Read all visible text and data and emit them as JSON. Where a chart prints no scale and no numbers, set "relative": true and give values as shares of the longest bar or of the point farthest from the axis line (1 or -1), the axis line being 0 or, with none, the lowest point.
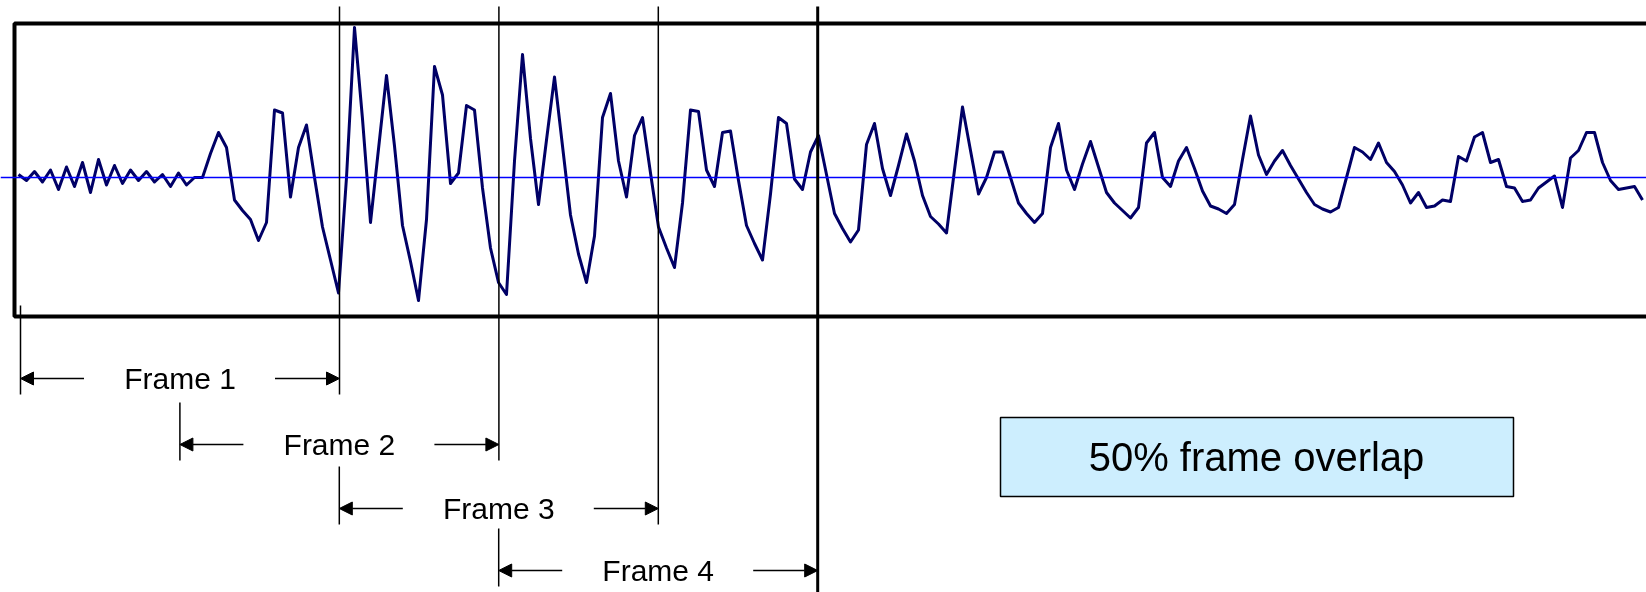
{
  "chart_data": {
    "type": "line",
    "relative": true,
    "categories": [
      null,
      null,
      null,
      null,
      null,
      null,
      null,
      null,
      null,
      null,
      null,
      null,
      null,
      null,
      null,
      null,
      null,
      null,
      null,
      null,
      null,
      null,
      null,
      null,
      null,
      null,
      null,
      null,
      null,
      null,
      null,
      null,
      null,
      null,
      null,
      null,
      null,
      null,
      null,
      null,
      null,
      null,
      null,
      null,
      null,
      null,
      null,
      null,
      null,
      null,
      null,
      null,
      null,
      null,
      null,
      null,
      null,
      null,
      null,
      null,
      null,
      null,
      null,
      null,
      null,
      null,
      null,
      null,
      null,
      null,
      null,
      null,
      null,
      null,
      null,
      null,
      null,
      null,
      null,
      null,
      null,
      null,
      null,
      null,
      null,
      null,
      null,
      null,
      null,
      null,
      null,
      null,
      null,
      null,
      null,
      null,
      null,
      null,
      null,
      null,
      null,
      null,
      null,
      null,
      null,
      null,
      null,
      null,
      null,
      null,
      null,
      null,
      null,
      null,
      null,
      null,
      null,
      null,
      null,
      null,
      null,
      null,
      null,
      null,
      null,
      null,
      null,
      null,
      null,
      null,
      null,
      null,
      null,
      null,
      null,
      null,
      null,
      null,
      null,
      null,
      null,
      null,
      null,
      null,
      null,
      null,
      null,
      null,
      null,
      null,
      null,
      null,
      null,
      null,
      null,
      null,
      null,
      null,
      null,
      null,
      null,
      null,
      null,
      null,
      null,
      null,
      null,
      null,
      null,
      null,
      null,
      null,
      null,
      null,
      null,
      null,
      null,
      null,
      null,
      null,
      null,
      null,
      null,
      null,
      null,
      null,
      null,
      null,
      null,
      null,
      null,
      null,
      null,
      null,
      null,
      null,
      null,
      null,
      null,
      null,
      null,
      null,
      null,
      null
    ],
    "series": [
      {
        "color": "#000066",
        "values": [
          0.02,
          -0.02,
          0.04,
          -0.03,
          0.05,
          -0.08,
          0.07,
          -0.06,
          0.1,
          -0.1,
          0.12,
          -0.05,
          0.08,
          -0.04,
          0.05,
          -0.02,
          0.04,
          -0.03,
          0.02,
          -0.06,
          0.03,
          -0.05,
          0.0,
          0.0,
          0.16,
          0.3,
          0.2,
          -0.15,
          -0.22,
          -0.28,
          -0.42,
          -0.3,
          0.45,
          0.43,
          -0.13,
          0.2,
          0.35,
          0.0,
          -0.33,
          -0.55,
          -0.77,
          0.0,
          1.0,
          0.39,
          -0.3,
          0.19,
          0.68,
          0.21,
          -0.32,
          -0.56,
          -0.82,
          -0.28,
          0.74,
          0.55,
          -0.04,
          0.03,
          0.48,
          0.45,
          -0.07,
          -0.47,
          -0.7,
          -0.78,
          0.11,
          0.82,
          0.26,
          -0.18,
          0.25,
          0.67,
          0.21,
          -0.25,
          -0.51,
          -0.7,
          -0.39,
          0.4,
          0.56,
          0.11,
          -0.13,
          0.28,
          0.4,
          0.03,
          -0.33,
          -0.47,
          -0.6,
          -0.17,
          0.45,
          0.44,
          0.05,
          -0.06,
          0.3,
          0.31,
          -0.02,
          -0.32,
          -0.44,
          -0.55,
          -0.11,
          0.4,
          0.36,
          -0.01,
          -0.08,
          0.17,
          0.28,
          0.02,
          -0.24,
          -0.34,
          -0.43,
          -0.35,
          0.22,
          0.36,
          0.06,
          -0.12,
          0.08,
          0.29,
          0.11,
          -0.12,
          -0.26,
          -0.31,
          -0.37,
          0.05,
          0.47,
          0.18,
          -0.11,
          0.0,
          0.17,
          0.17,
          0.0,
          -0.17,
          -0.24,
          -0.3,
          -0.24,
          0.2,
          0.36,
          0.05,
          -0.08,
          0.09,
          0.24,
          0.07,
          -0.1,
          -0.17,
          -0.22,
          -0.27,
          -0.2,
          0.23,
          0.3,
          0.0,
          -0.06,
          0.11,
          0.2,
          0.06,
          -0.09,
          -0.19,
          -0.21,
          -0.24,
          -0.18,
          0.12,
          0.41,
          0.15,
          0.02,
          0.11,
          0.18,
          0.08,
          -0.01,
          -0.1,
          -0.18,
          -0.21,
          -0.23,
          -0.2,
          0.0,
          0.2,
          0.17,
          0.12,
          0.23,
          0.1,
          0.04,
          -0.05,
          -0.17,
          -0.1,
          -0.2,
          -0.19,
          -0.15,
          -0.16,
          0.14,
          0.11,
          0.27,
          0.3,
          0.1,
          0.12,
          -0.06,
          -0.07,
          -0.16,
          -0.15,
          -0.07,
          -0.03,
          0.01,
          -0.2,
          0.13,
          0.18,
          0.3,
          0.3,
          0.1,
          -0.02,
          -0.08,
          -0.07,
          -0.06,
          -0.15
        ]
      }
    ],
    "ref_lines": [
      {
        "axis": "y",
        "value": 0,
        "color": "#0000ff"
      }
    ],
    "annotations": [
      "Frame 1",
      "Frame 2",
      "Frame 3",
      "Frame 4",
      "50% frame overlap"
    ]
  }
}
